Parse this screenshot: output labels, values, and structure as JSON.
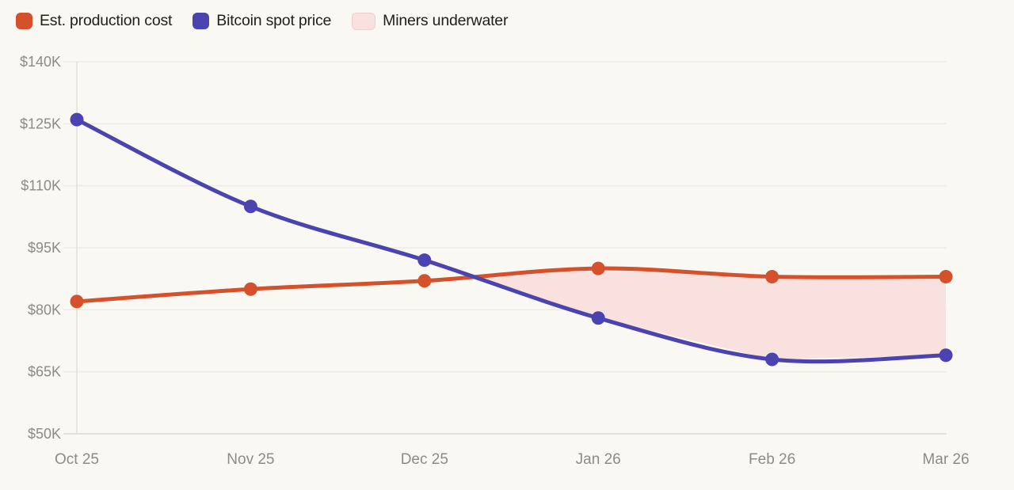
{
  "legend": {
    "items": [
      {
        "label": "Est. production cost",
        "color": "#d4512c",
        "type": "line"
      },
      {
        "label": "Bitcoin spot price",
        "color": "#4b43af",
        "type": "line"
      },
      {
        "label": "Miners underwater",
        "color": "#f8e1de",
        "border": "#f0cfca",
        "type": "area"
      }
    ]
  },
  "chart_data": {
    "type": "line",
    "title": "",
    "categories": [
      "Oct 25",
      "Nov 25",
      "Dec 25",
      "Jan 26",
      "Feb 26",
      "Mar 26"
    ],
    "series": [
      {
        "name": "Est. production cost",
        "color": "#d4512c",
        "values": [
          82,
          85,
          87,
          90,
          88,
          88
        ]
      },
      {
        "name": "Bitcoin spot price",
        "color": "#4b43af",
        "values": [
          126,
          105,
          92,
          78,
          68,
          69
        ]
      }
    ],
    "values_unit": "USD thousands",
    "area": {
      "name": "Miners underwater",
      "fill": "#f8e1de",
      "description": "Region between the two lines where Bitcoin spot price is below estimated production cost, from the crossover (late Dec 25) through Mar 26"
    },
    "y_ticks": [
      "$140K",
      "$125K",
      "$110K",
      "$95K",
      "$80K",
      "$65K",
      "$50K"
    ],
    "y_tick_values": [
      140,
      125,
      110,
      95,
      80,
      65,
      50
    ],
    "ylim": [
      50,
      140
    ],
    "grid": "horizontal",
    "legend_position": "top-left"
  },
  "colors": {
    "background": "#faf8f2",
    "gridline": "#edebe4",
    "axis_line": "#e3e0d8",
    "axis_text": "#8f8b84",
    "legend_text": "#21201d"
  }
}
